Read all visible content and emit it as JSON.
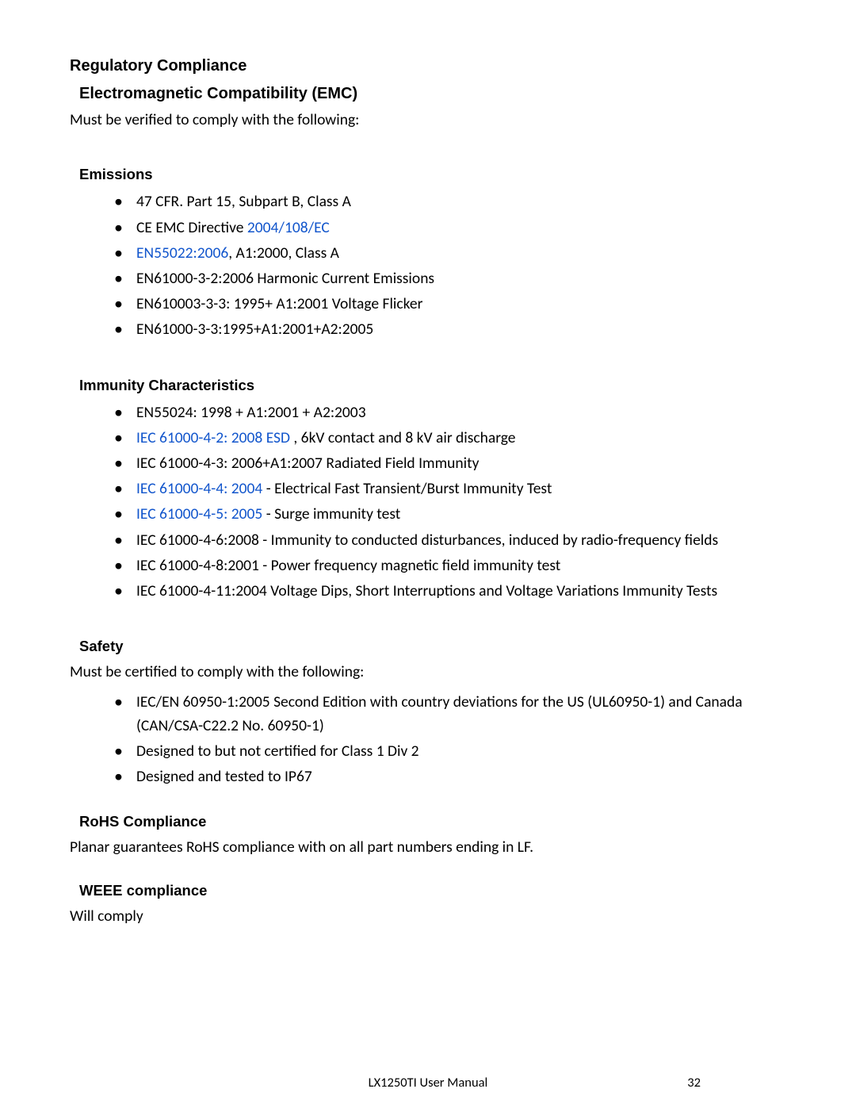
{
  "colors": {
    "link": "#1155cc",
    "text": "#000000",
    "background": "#ffffff"
  },
  "typography": {
    "heading_font": "Verdana",
    "body_font": "Calibri",
    "h1_size_pt": 15,
    "h2_size_pt": 15,
    "h3_size_pt": 14,
    "body_size_pt": 14.5
  },
  "headings": {
    "regulatory": "Regulatory Compliance",
    "emc": "Electromagnetic Compatibility (EMC)",
    "emissions": "Emissions",
    "immunity": "Immunity Characteristics",
    "safety": "Safety",
    "rohs": "RoHS   Compliance",
    "weee": "WEEE compliance"
  },
  "paragraphs": {
    "emc_intro": "Must be verified to comply with the following:",
    "safety_intro": "Must be certified to comply with the following:",
    "rohs_body": "Planar guarantees RoHS compliance with on all part numbers ending in LF.",
    "weee_body": "Will comply"
  },
  "emissions_items": {
    "i0": {
      "pre": "47 CFR. Part 15, Subpart B, Class A"
    },
    "i1": {
      "pre": "CE EMC Directive ",
      "link": "2004/108/EC"
    },
    "i2": {
      "link": "EN55022:2006",
      "post": ", A1:2000, Class A"
    },
    "i3": {
      "pre": "EN61000-3-2:2006 Harmonic Current Emissions"
    },
    "i4": {
      "pre": "EN610003-3-3: 1995+ A1:2001 Voltage Flicker"
    },
    "i5": {
      "pre": "EN61000-3-3:1995+A1:2001+A2:2005"
    }
  },
  "immunity_items": {
    "i0": {
      "pre": "EN55024: 1998 + A1:2001 + A2:2003"
    },
    "i1": {
      "link": "IEC 61000-4-2: 2008 ESD ",
      "post": ", 6kV contact and 8 kV air discharge"
    },
    "i2": {
      "pre": "IEC 61000-4-3: 2006+A1:2007 Radiated Field Immunity"
    },
    "i3": {
      "link": "IEC 61000-4-4: 2004 ",
      "post": " - Electrical Fast Transient/Burst Immunity Test"
    },
    "i4": {
      "link": "IEC 61000-4-5: 2005  ",
      "post": " - Surge immunity test"
    },
    "i5": {
      "pre": "IEC 61000-4-6:2008 - Immunity to conducted disturbances, induced by radio-frequency fields"
    },
    "i6": {
      "pre": "IEC 61000-4-8:2001 - Power frequency magnetic field immunity test"
    },
    "i7": {
      "pre": "IEC 61000-4-11:2004 Voltage Dips, Short Interruptions and Voltage Variations Immunity Tests"
    }
  },
  "safety_items": {
    "i0": {
      "pre": "IEC/EN 60950-1:2005 Second Edition with country deviations for the US (UL60950-1) and Canada (CAN/CSA-C22.2 No. 60950-1)"
    },
    "i1": {
      "pre": "Designed to but not certified for Class 1 Div 2"
    },
    "i2": {
      "pre": "Designed and tested to IP67"
    }
  },
  "footer": {
    "center": "LX1250TI User Manual",
    "page_number": "32"
  }
}
